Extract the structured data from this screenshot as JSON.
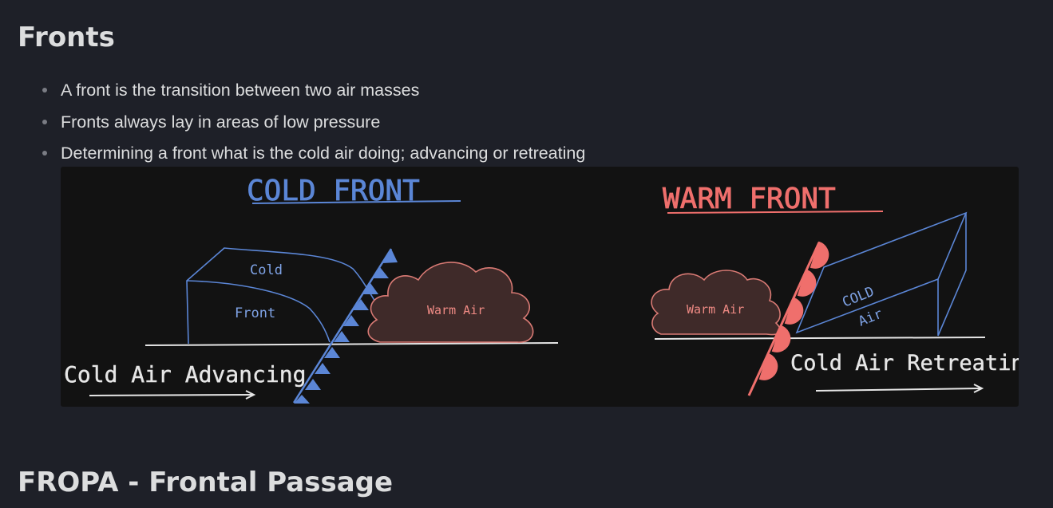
{
  "headings": {
    "fronts": "Fronts",
    "fropa": "FROPA - Frontal Passage"
  },
  "bullets": [
    "A front is the transition between two air masses",
    "Fronts always lay in areas of low pressure",
    "Determining a front what is the cold air doing; advancing or retreating"
  ],
  "diagram": {
    "cold_front": {
      "title": "COLD FRONT",
      "label_cold": "Cold",
      "label_front": "Front",
      "label_warm_air": "Warm Air",
      "caption": "Cold Air Advancing"
    },
    "warm_front": {
      "title": "WARM FRONT",
      "label_warm_air": "Warm Air",
      "label_cold": "COLD",
      "label_air": "Air",
      "caption": "Cold Air Retreating"
    },
    "colors": {
      "cold_blue": "#5b86d6",
      "warm_red": "#ef6f6c",
      "cloud_fill": "#3f2a29",
      "cloud_stroke": "#d97a74",
      "line_white": "#e6e6e6"
    }
  }
}
